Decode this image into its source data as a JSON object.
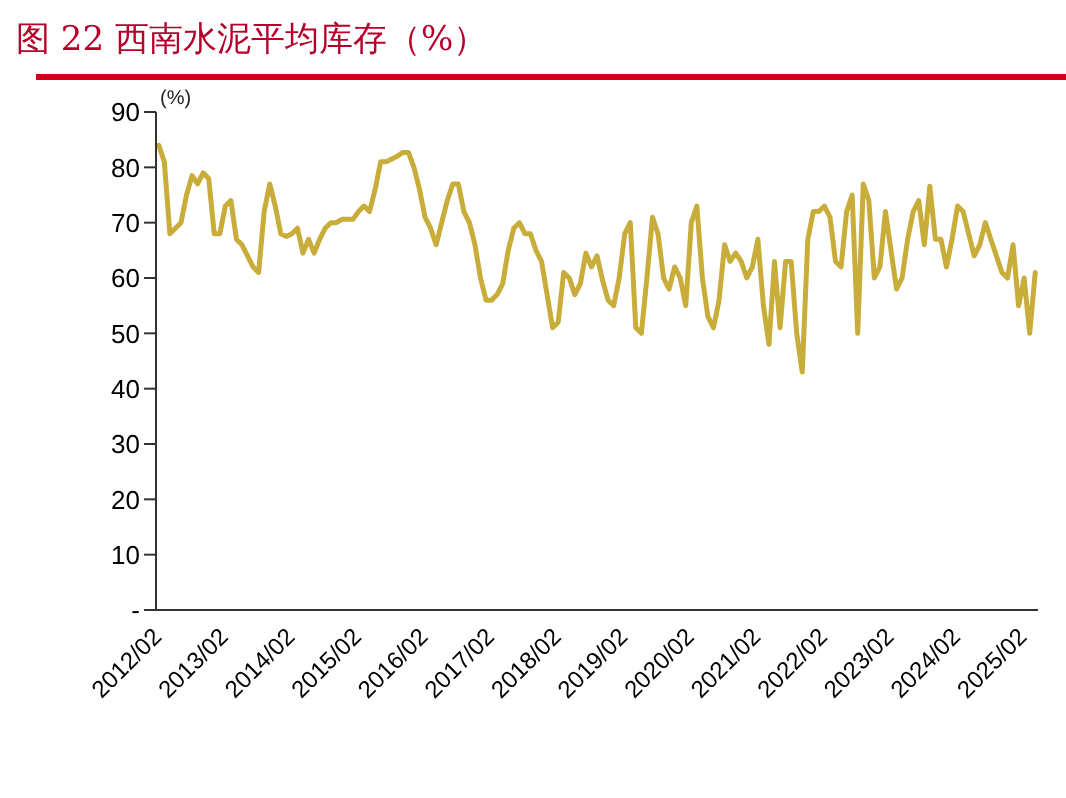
{
  "chart_data": {
    "type": "line",
    "title": "图 22 西南水泥平均库存（%）",
    "ylabel": "(%)",
    "categories": [
      "2012/02",
      null,
      null,
      null,
      null,
      null,
      null,
      null,
      null,
      null,
      null,
      null,
      "2013/02",
      null,
      null,
      null,
      null,
      null,
      null,
      null,
      null,
      null,
      null,
      null,
      "2014/02",
      null,
      null,
      null,
      null,
      null,
      null,
      null,
      null,
      null,
      null,
      null,
      "2015/02",
      null,
      null,
      null,
      null,
      null,
      null,
      null,
      null,
      null,
      null,
      null,
      "2016/02",
      null,
      null,
      null,
      null,
      null,
      null,
      null,
      null,
      null,
      null,
      null,
      "2017/02",
      null,
      null,
      null,
      null,
      null,
      null,
      null,
      null,
      null,
      null,
      null,
      "2018/02",
      null,
      null,
      null,
      null,
      null,
      null,
      null,
      null,
      null,
      null,
      null,
      "2019/02",
      null,
      null,
      null,
      null,
      null,
      null,
      null,
      null,
      null,
      null,
      null,
      "2020/02",
      null,
      null,
      null,
      null,
      null,
      null,
      null,
      null,
      null,
      null,
      null,
      "2021/02",
      null,
      null,
      null,
      null,
      null,
      null,
      null,
      null,
      null,
      null,
      null,
      "2022/02",
      null,
      null,
      null,
      null,
      null,
      null,
      null,
      null,
      null,
      null,
      null,
      "2023/02",
      null,
      null,
      null,
      null,
      null,
      null,
      null,
      null,
      null,
      null,
      null,
      "2024/02",
      null,
      null,
      null,
      null,
      null,
      null,
      null,
      null,
      null,
      null,
      null,
      "2025/02",
      null,
      null
    ],
    "series": [
      {
        "color": "#c9ad3a",
        "values": [
          84,
          81,
          68,
          69,
          70,
          75,
          78.5,
          77,
          79,
          78,
          68,
          68,
          73,
          74,
          67,
          66,
          64,
          62,
          61,
          72,
          77,
          73,
          68,
          67.5,
          68,
          69,
          64.5,
          67,
          64.5,
          67,
          69,
          70,
          70,
          70.6,
          70.6,
          70.6,
          72,
          73,
          72,
          76,
          81,
          81,
          81.5,
          82,
          82.7,
          82.7,
          80,
          76,
          71,
          69,
          66,
          70,
          74,
          77,
          77,
          72,
          70,
          66,
          60,
          56,
          56,
          57,
          59,
          65,
          69,
          70,
          68,
          68,
          65,
          63,
          57,
          51,
          52,
          61,
          60,
          57,
          59,
          64.5,
          62,
          64,
          59.6,
          56,
          55,
          60,
          68,
          70,
          51,
          50,
          60,
          71,
          68,
          60,
          58,
          62,
          60,
          55,
          70,
          73,
          60,
          53,
          51,
          56,
          66,
          63,
          64.5,
          63,
          60,
          62,
          67,
          55,
          48,
          63,
          51,
          63,
          63,
          50,
          43,
          67,
          72,
          72,
          73,
          71,
          63,
          62,
          72,
          75,
          50,
          77,
          74,
          60,
          62,
          72,
          65,
          58,
          60,
          67,
          72,
          74,
          66,
          76.6,
          67,
          67,
          62,
          67,
          73,
          72,
          68,
          64,
          66,
          70,
          67,
          64,
          61,
          60,
          66,
          55,
          60,
          50,
          61
        ]
      }
    ],
    "ylim": [
      0,
      90
    ],
    "yticks": [
      {
        "value": 0,
        "label": "-"
      },
      10,
      20,
      30,
      40,
      50,
      60,
      70,
      80,
      90
    ],
    "grid": false,
    "legend": false,
    "marker": "none",
    "line_style": "solid"
  }
}
